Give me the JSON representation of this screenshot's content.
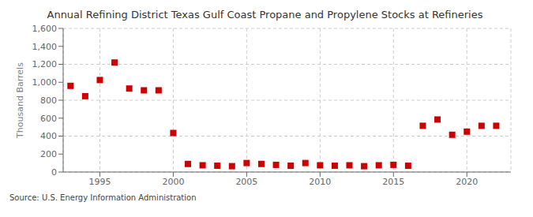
{
  "chart_data": {
    "type": "scatter",
    "title": "Annual Refining District Texas Gulf Coast Propane and Propylene Stocks at Refineries",
    "ylabel": "Thousand Barrels",
    "source": "Source: U.S. Energy Information Administration",
    "x": [
      1993,
      1994,
      1995,
      1996,
      1997,
      1998,
      1999,
      2000,
      2001,
      2002,
      2003,
      2004,
      2005,
      2006,
      2007,
      2008,
      2009,
      2010,
      2011,
      2012,
      2013,
      2014,
      2015,
      2016,
      2017,
      2018,
      2019,
      2020,
      2021,
      2022
    ],
    "values": [
      960,
      845,
      1025,
      1220,
      930,
      910,
      910,
      435,
      90,
      75,
      70,
      65,
      100,
      90,
      80,
      70,
      100,
      75,
      70,
      75,
      65,
      75,
      80,
      70,
      515,
      585,
      415,
      450,
      515,
      515
    ],
    "color": "#cc0000",
    "marker": "square",
    "xlim": [
      1992.5,
      2023
    ],
    "xticks": [
      1995,
      2000,
      2005,
      2010,
      2015,
      2020
    ],
    "ylim": [
      0,
      1600
    ],
    "yticks": [
      0,
      200,
      400,
      600,
      800,
      {
        "value": 1000,
        "label": "1,000"
      },
      {
        "value": 1200,
        "label": "1,200"
      },
      {
        "value": 1400,
        "label": "1,400"
      },
      {
        "value": 1600,
        "label": "1,600"
      }
    ],
    "grid": true
  }
}
